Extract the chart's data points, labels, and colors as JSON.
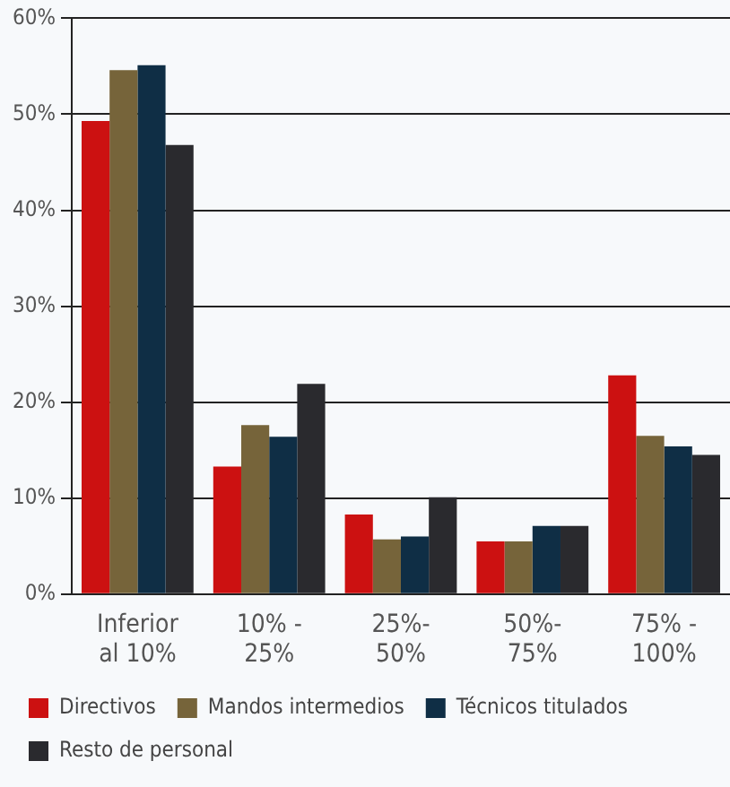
{
  "chart_data": {
    "type": "bar",
    "categories": [
      "Inferior\nal 10%",
      "10% -\n25%",
      "25%-\n50%",
      "50%-\n75%",
      "75% -\n100%"
    ],
    "series": [
      {
        "name": "Directivos",
        "color": "#cc1111",
        "values": [
          49.3,
          13.3,
          8.3,
          5.5,
          22.8
        ]
      },
      {
        "name": "Mandos intermedios",
        "color": "#76643a",
        "values": [
          54.6,
          17.6,
          5.7,
          5.5,
          16.5
        ]
      },
      {
        "name": "Técnicos titulados",
        "color": "#0f2e45",
        "values": [
          55.1,
          16.4,
          6.0,
          7.1,
          15.4
        ]
      },
      {
        "name": "Resto de personal",
        "color": "#2a2a2e",
        "values": [
          46.8,
          21.9,
          10.1,
          7.1,
          14.5
        ]
      }
    ],
    "ylim": [
      0,
      60
    ],
    "yticks": [
      {
        "value": 0,
        "label": "0%"
      },
      {
        "value": 10,
        "label": "10%"
      },
      {
        "value": 20,
        "label": "20%"
      },
      {
        "value": 30,
        "label": "30%"
      },
      {
        "value": 40,
        "label": "40%"
      },
      {
        "value": 50,
        "label": "50%"
      },
      {
        "value": 60,
        "label": "60%"
      }
    ],
    "grid": "y",
    "legend": "bottom"
  }
}
